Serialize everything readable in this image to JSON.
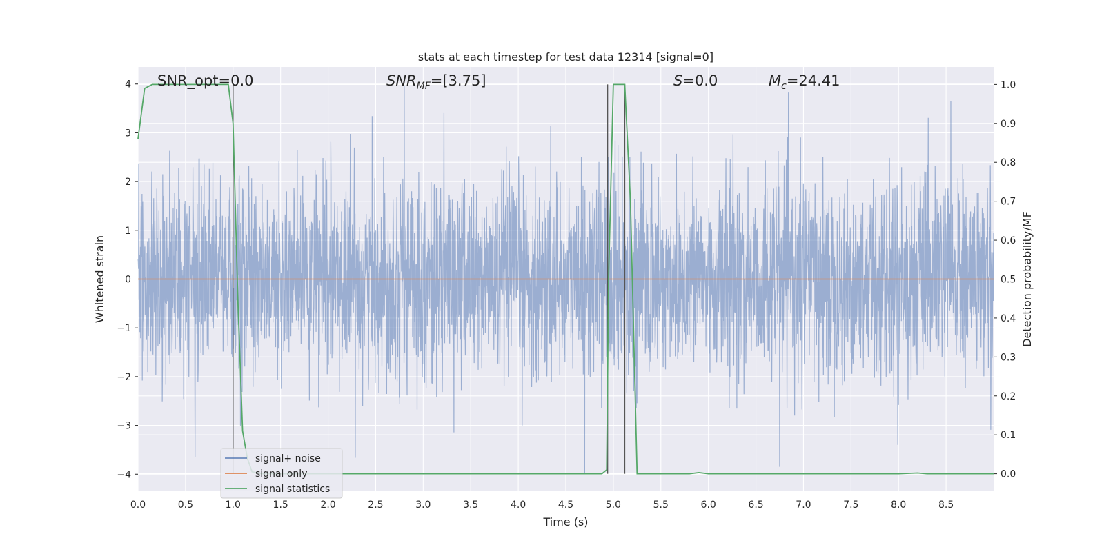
{
  "chart_data": {
    "type": "line",
    "title": "stats at each timestep for test data 12314 [signal=0]",
    "xlabel": "Time (s)",
    "ylabel": "Whitened strain",
    "y2label": "Detection probability/MF",
    "xlim": [
      0.0,
      9.0
    ],
    "ylim": [
      -4.35,
      4.35
    ],
    "y2lim": [
      -0.045,
      1.045
    ],
    "x_ticks": [
      "0.0",
      "0.5",
      "1.0",
      "1.5",
      "2.0",
      "2.5",
      "3.0",
      "3.5",
      "4.0",
      "4.5",
      "5.0",
      "5.5",
      "6.0",
      "6.5",
      "7.0",
      "7.5",
      "8.0",
      "8.5"
    ],
    "y_ticks": [
      "4",
      "3",
      "2",
      "1",
      "0",
      "−1",
      "−2",
      "−3",
      "−4"
    ],
    "y2_ticks": [
      "1.0",
      "0.9",
      "0.8",
      "0.7",
      "0.6",
      "0.5",
      "0.4",
      "0.3",
      "0.2",
      "0.1",
      "0.0"
    ],
    "grid": true,
    "legend_position": "lower-left",
    "annotations": {
      "snr_opt": "SNR_opt=0.0",
      "snr_mf_main": "SNR",
      "snr_mf_sub": "MF",
      "snr_mf_value": "=[3.75]",
      "s_main": "S",
      "s_value": "=0.0",
      "mc_main": "M",
      "mc_sub": "c",
      "mc_value": "=24.41"
    },
    "vertical_lines_x": [
      1.0,
      4.94,
      5.12
    ],
    "series": [
      {
        "name": "signal+ noise",
        "color": "#4c72b0",
        "opacity": 0.5,
        "axis": "left",
        "x_range": [
          0.0,
          9.0
        ],
        "amplitude_std": 1.0,
        "notable_extremes": [
          {
            "x": 2.8,
            "y": 3.95
          },
          {
            "x": 8.55,
            "y": 3.65
          },
          {
            "x": 4.7,
            "y": -4.0
          },
          {
            "x": 0.6,
            "y": -3.65
          },
          {
            "x": 6.75,
            "y": -3.85
          }
        ]
      },
      {
        "name": "signal only",
        "color": "#dd8452",
        "axis": "left",
        "x": [
          0.0,
          9.0
        ],
        "y": [
          0.0,
          0.0
        ]
      },
      {
        "name": "signal statistics",
        "color": "#55a868",
        "axis": "right",
        "x": [
          0.0,
          0.07,
          0.15,
          0.25,
          0.5,
          0.75,
          0.93,
          0.95,
          1.0,
          1.05,
          1.1,
          1.15,
          1.2,
          1.3,
          1.5,
          2.0,
          3.0,
          4.0,
          4.5,
          4.88,
          4.93,
          4.95,
          5.0,
          5.05,
          5.12,
          5.18,
          5.25,
          5.3,
          5.5,
          5.8,
          5.9,
          6.0,
          7.0,
          8.0,
          8.2,
          8.3,
          9.0
        ],
        "y": [
          0.86,
          0.99,
          1.0,
          1.0,
          1.0,
          1.0,
          1.0,
          1.0,
          0.9,
          0.45,
          0.11,
          0.04,
          0.005,
          0.0,
          0.0,
          0.0,
          0.0,
          0.0,
          0.0,
          0.0,
          0.01,
          0.5,
          1.0,
          1.0,
          1.0,
          0.7,
          0.0,
          0.0,
          0.0,
          0.0,
          0.003,
          0.0,
          0.0,
          0.0,
          0.002,
          0.0,
          0.0
        ]
      }
    ]
  }
}
